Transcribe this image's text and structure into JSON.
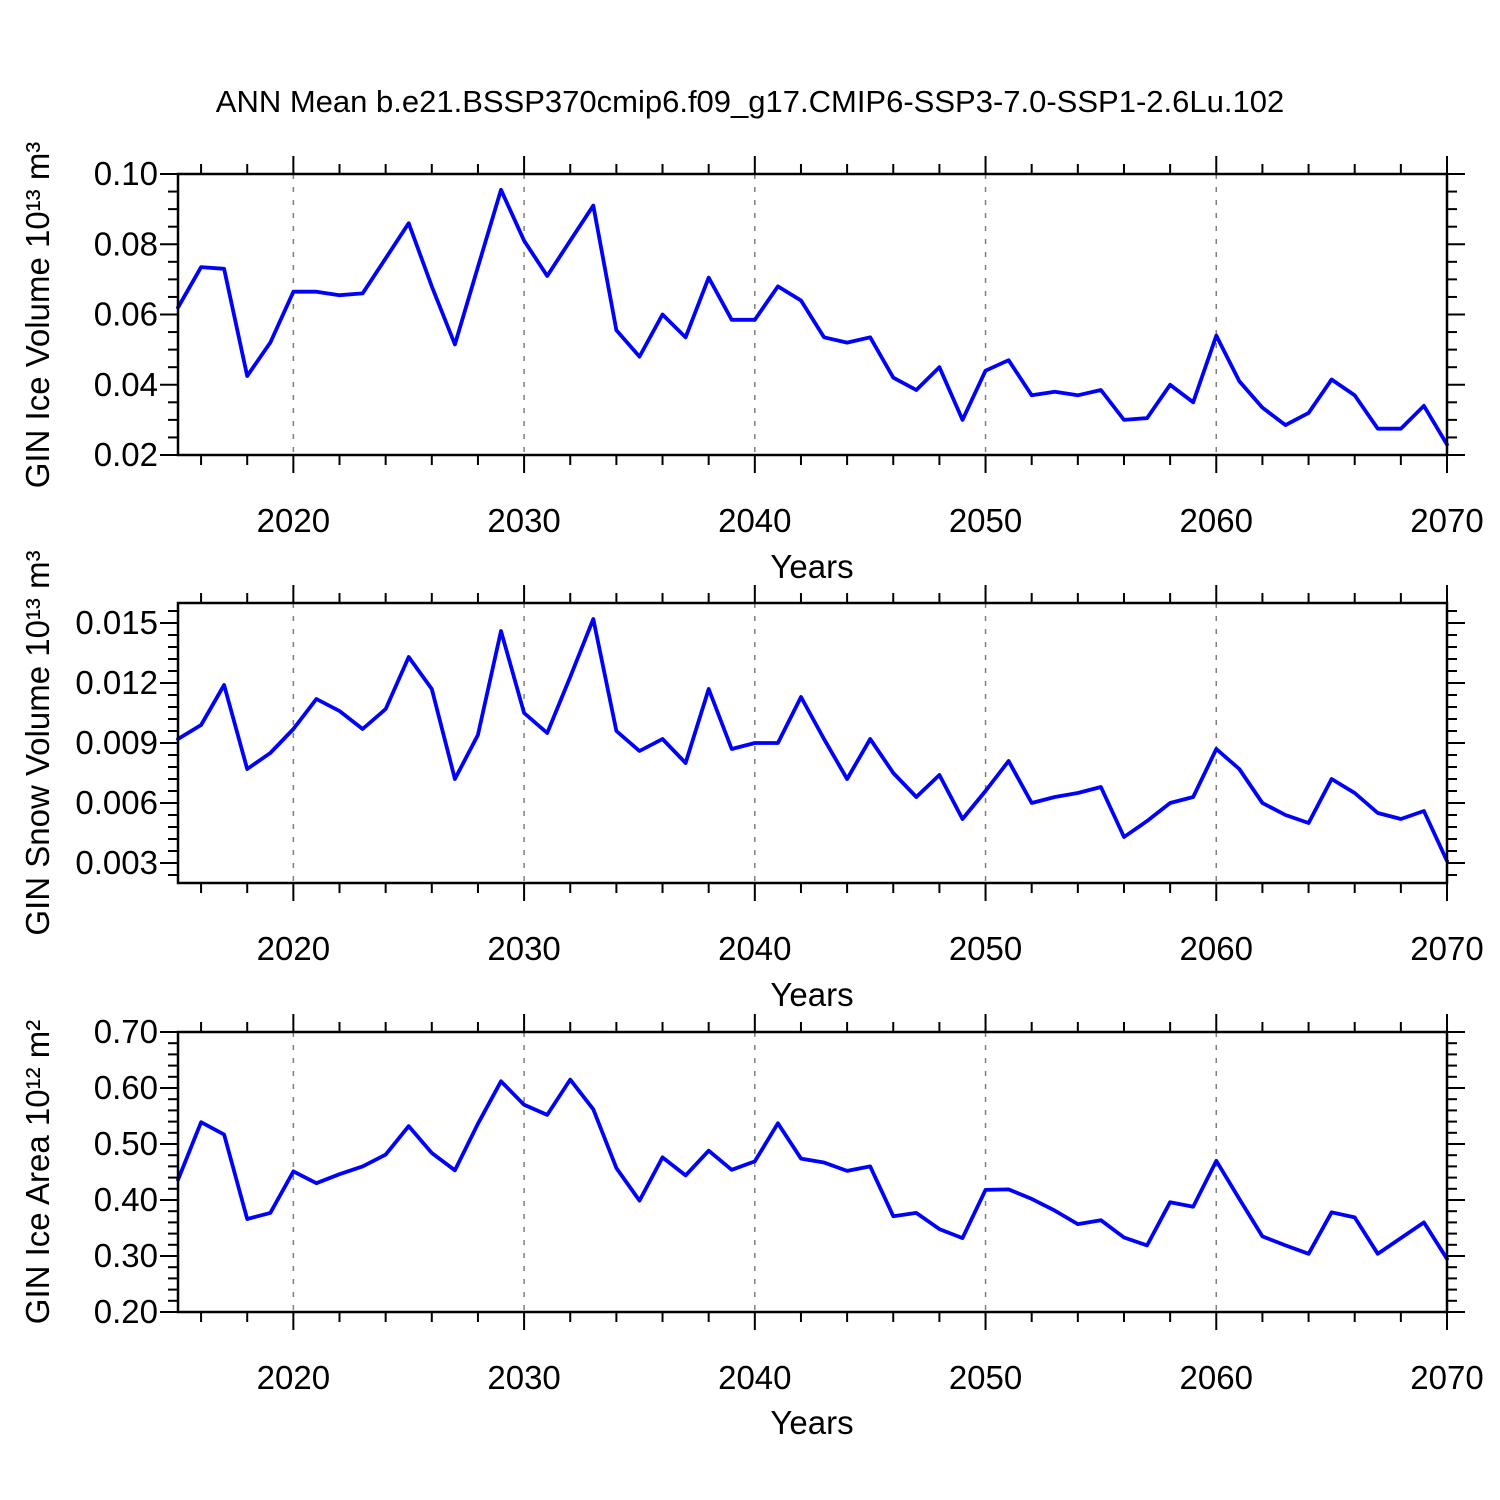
{
  "page": {
    "title": "ANN Mean b.e21.BSSP370cmip6.f09_g17.CMIP6-SSP3-7.0-SSP1-2.6Lu.102",
    "background": "#ffffff"
  },
  "chart_data": [
    {
      "type": "line",
      "title": "",
      "xlabel": "Years",
      "ylabel": "GIN Ice Volume 10¹³ m³",
      "line_color": "#0000ff",
      "grid_on": true,
      "legend": "none",
      "xlim": [
        2015,
        2070
      ],
      "ylim": [
        0.02,
        0.1
      ],
      "xticks": [
        2020,
        2030,
        2040,
        2050,
        2060,
        2070
      ],
      "xtick_labels": [
        "2020",
        "2030",
        "2040",
        "2050",
        "2060",
        "2070"
      ],
      "x_minor_step": 2,
      "yticks": [
        0.02,
        0.04,
        0.06,
        0.08,
        0.1
      ],
      "ytick_labels": [
        "0.02",
        "0.04",
        "0.06",
        "0.08",
        "0.10"
      ],
      "y_minor_step": 0.005,
      "grid_x": [
        2020,
        2030,
        2040,
        2050,
        2060
      ],
      "x": [
        2015,
        2016,
        2017,
        2018,
        2019,
        2020,
        2021,
        2022,
        2023,
        2024,
        2025,
        2026,
        2027,
        2028,
        2029,
        2030,
        2031,
        2032,
        2033,
        2034,
        2035,
        2036,
        2037,
        2038,
        2039,
        2040,
        2041,
        2042,
        2043,
        2044,
        2045,
        2046,
        2047,
        2048,
        2049,
        2050,
        2051,
        2052,
        2053,
        2054,
        2055,
        2056,
        2057,
        2058,
        2059,
        2060,
        2061,
        2062,
        2063,
        2064,
        2065,
        2066,
        2067,
        2068,
        2069,
        2070
      ],
      "values": [
        0.062,
        0.0735,
        0.073,
        0.0425,
        0.052,
        0.0665,
        0.0665,
        0.0655,
        0.066,
        0.076,
        0.086,
        0.068,
        0.0515,
        0.0735,
        0.0955,
        0.081,
        0.071,
        0.081,
        0.091,
        0.0555,
        0.048,
        0.06,
        0.0535,
        0.0705,
        0.0585,
        0.0585,
        0.068,
        0.064,
        0.0535,
        0.052,
        0.0535,
        0.042,
        0.0385,
        0.045,
        0.03,
        0.044,
        0.047,
        0.037,
        0.038,
        0.037,
        0.0385,
        0.03,
        0.0305,
        0.04,
        0.035,
        0.054,
        0.041,
        0.0335,
        0.0285,
        0.032,
        0.0415,
        0.037,
        0.0275,
        0.0275,
        0.034,
        0.023
      ]
    },
    {
      "type": "line",
      "title": "",
      "xlabel": "Years",
      "ylabel": "GIN Snow Volume 10¹³ m³",
      "line_color": "#0000ff",
      "grid_on": true,
      "legend": "none",
      "xlim": [
        2015,
        2070
      ],
      "ylim": [
        0.002,
        0.016
      ],
      "xticks": [
        2020,
        2030,
        2040,
        2050,
        2060,
        2070
      ],
      "xtick_labels": [
        "2020",
        "2030",
        "2040",
        "2050",
        "2060",
        "2070"
      ],
      "x_minor_step": 2,
      "yticks": [
        0.003,
        0.006,
        0.009,
        0.012,
        0.015
      ],
      "ytick_labels": [
        "0.003",
        "0.006",
        "0.009",
        "0.012",
        "0.015"
      ],
      "y_minor_step": 0.0006,
      "grid_x": [
        2020,
        2030,
        2040,
        2050,
        2060
      ],
      "x": [
        2015,
        2016,
        2017,
        2018,
        2019,
        2020,
        2021,
        2022,
        2023,
        2024,
        2025,
        2026,
        2027,
        2028,
        2029,
        2030,
        2031,
        2032,
        2033,
        2034,
        2035,
        2036,
        2037,
        2038,
        2039,
        2040,
        2041,
        2042,
        2043,
        2044,
        2045,
        2046,
        2047,
        2048,
        2049,
        2050,
        2051,
        2052,
        2053,
        2054,
        2055,
        2056,
        2057,
        2058,
        2059,
        2060,
        2061,
        2062,
        2063,
        2064,
        2065,
        2066,
        2067,
        2068,
        2069,
        2070
      ],
      "values": [
        0.0092,
        0.0099,
        0.0119,
        0.0077,
        0.0085,
        0.0097,
        0.0112,
        0.0106,
        0.0097,
        0.0107,
        0.0133,
        0.0117,
        0.0072,
        0.0094,
        0.0146,
        0.0105,
        0.0095,
        0.0123,
        0.0152,
        0.0096,
        0.0086,
        0.0092,
        0.008,
        0.0117,
        0.0087,
        0.009,
        0.009,
        0.0113,
        0.0092,
        0.0072,
        0.0092,
        0.0075,
        0.0063,
        0.0074,
        0.0052,
        0.0066,
        0.0081,
        0.006,
        0.0063,
        0.0065,
        0.0068,
        0.0043,
        0.0051,
        0.006,
        0.0063,
        0.0087,
        0.0077,
        0.006,
        0.0054,
        0.005,
        0.0072,
        0.0065,
        0.0055,
        0.0052,
        0.0056,
        0.0031
      ]
    },
    {
      "type": "line",
      "title": "",
      "xlabel": "Years",
      "ylabel": "GIN Ice Area 10¹² m²",
      "line_color": "#0000ff",
      "grid_on": true,
      "legend": "none",
      "xlim": [
        2015,
        2070
      ],
      "ylim": [
        0.2,
        0.7
      ],
      "xticks": [
        2020,
        2030,
        2040,
        2050,
        2060,
        2070
      ],
      "xtick_labels": [
        "2020",
        "2030",
        "2040",
        "2050",
        "2060",
        "2070"
      ],
      "x_minor_step": 2,
      "yticks": [
        0.2,
        0.3,
        0.4,
        0.5,
        0.6,
        0.7
      ],
      "ytick_labels": [
        "0.20",
        "0.30",
        "0.40",
        "0.50",
        "0.60",
        "0.70"
      ],
      "y_minor_step": 0.02,
      "grid_x": [
        2020,
        2030,
        2040,
        2050,
        2060
      ],
      "x": [
        2015,
        2016,
        2017,
        2018,
        2019,
        2020,
        2021,
        2022,
        2023,
        2024,
        2025,
        2026,
        2027,
        2028,
        2029,
        2030,
        2031,
        2032,
        2033,
        2034,
        2035,
        2036,
        2037,
        2038,
        2039,
        2040,
        2041,
        2042,
        2043,
        2044,
        2045,
        2046,
        2047,
        2048,
        2049,
        2050,
        2051,
        2052,
        2053,
        2054,
        2055,
        2056,
        2057,
        2058,
        2059,
        2060,
        2061,
        2062,
        2063,
        2064,
        2065,
        2066,
        2067,
        2068,
        2069,
        2070
      ],
      "values": [
        0.436,
        0.539,
        0.517,
        0.366,
        0.377,
        0.451,
        0.43,
        0.446,
        0.46,
        0.481,
        0.532,
        0.484,
        0.453,
        0.536,
        0.612,
        0.57,
        0.552,
        0.615,
        0.562,
        0.457,
        0.399,
        0.476,
        0.444,
        0.488,
        0.454,
        0.469,
        0.537,
        0.474,
        0.467,
        0.452,
        0.46,
        0.371,
        0.377,
        0.348,
        0.332,
        0.418,
        0.419,
        0.402,
        0.381,
        0.357,
        0.364,
        0.333,
        0.319,
        0.396,
        0.388,
        0.47,
        0.402,
        0.335,
        0.319,
        0.304,
        0.378,
        0.369,
        0.304,
        0.332,
        0.36,
        0.295
      ]
    }
  ]
}
